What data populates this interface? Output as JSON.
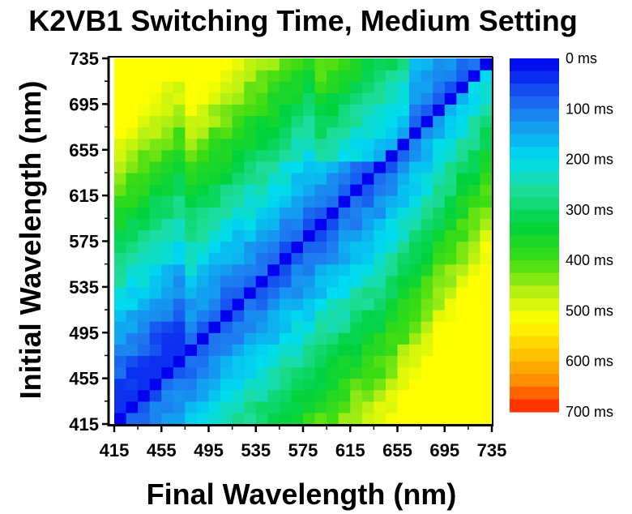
{
  "chart_data": {
    "type": "heatmap",
    "title": "K2VB1 Switching Time, Medium Setting",
    "xlabel": "Final Wavelength (nm)",
    "ylabel": "Initial Wavelength (nm)",
    "xlim": [
      415,
      735
    ],
    "ylim": [
      415,
      735
    ],
    "x_ticks": [
      415,
      455,
      495,
      535,
      575,
      615,
      655,
      695,
      735
    ],
    "y_ticks": [
      415,
      455,
      495,
      535,
      575,
      615,
      655,
      695,
      735
    ],
    "grid_step_nm": 10,
    "value_unit": "ms",
    "colorbar": {
      "range": [
        0,
        700
      ],
      "labels": [
        "0 ms",
        "100 ms",
        "200 ms",
        "300 ms",
        "400 ms",
        "500 ms",
        "600 ms",
        "700 ms"
      ],
      "stops": [
        {
          "value": 0,
          "color": "#0000ee"
        },
        {
          "value": 100,
          "color": "#1e78f0"
        },
        {
          "value": 200,
          "color": "#00dcf0"
        },
        {
          "value": 260,
          "color": "#1edc9a"
        },
        {
          "value": 330,
          "color": "#00d23c"
        },
        {
          "value": 400,
          "color": "#3cdc14"
        },
        {
          "value": 460,
          "color": "#b4f014"
        },
        {
          "value": 520,
          "color": "#ffff00"
        },
        {
          "value": 580,
          "color": "#ffc800"
        },
        {
          "value": 640,
          "color": "#ff8c00"
        },
        {
          "value": 700,
          "color": "#ff1e00"
        }
      ]
    },
    "model": {
      "description": "Cell value (ms) = f(initial, final) estimated from colors",
      "diagonal_ms": 0
    }
  }
}
